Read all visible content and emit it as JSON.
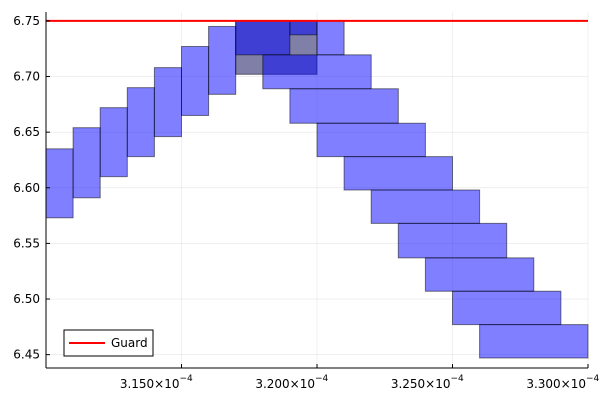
{
  "chart_data": {
    "type": "rectangles",
    "title": "",
    "xlabel": "",
    "ylabel": "",
    "xlim": [
      0.00031,
      0.00033
    ],
    "ylim": [
      6.438,
      6.758
    ],
    "grid": true,
    "legend_placement": "bottom-left",
    "x_ticks": [
      {
        "value": 0.000315,
        "mant": "3.150×10",
        "exp": "−4"
      },
      {
        "value": 0.00032,
        "mant": "3.200×10",
        "exp": "−4"
      },
      {
        "value": 0.000325,
        "mant": "3.250×10",
        "exp": "−4"
      },
      {
        "value": 0.00033,
        "mant": "3.300×10",
        "exp": "−4"
      }
    ],
    "y_ticks": [
      {
        "value": 6.45,
        "label": "6.45"
      },
      {
        "value": 6.5,
        "label": "6.50"
      },
      {
        "value": 6.55,
        "label": "6.55"
      },
      {
        "value": 6.6,
        "label": "6.60"
      },
      {
        "value": 6.65,
        "label": "6.65"
      },
      {
        "value": 6.7,
        "label": "6.70"
      },
      {
        "value": 6.75,
        "label": "6.75"
      }
    ],
    "guard": {
      "name": "Guard",
      "y": 6.75,
      "color": "#ff0000"
    },
    "box_color": "#0000ff",
    "overlap_color": "#000050",
    "boxes": [
      {
        "x0": 0.00031,
        "x1": 0.000311,
        "y0": 6.573,
        "y1": 6.635
      },
      {
        "x0": 0.000311,
        "x1": 0.000312,
        "y0": 6.591,
        "y1": 6.654
      },
      {
        "x0": 0.000312,
        "x1": 0.000313,
        "y0": 6.61,
        "y1": 6.672
      },
      {
        "x0": 0.000313,
        "x1": 0.000314,
        "y0": 6.628,
        "y1": 6.69
      },
      {
        "x0": 0.000314,
        "x1": 0.000315,
        "y0": 6.646,
        "y1": 6.708
      },
      {
        "x0": 0.000315,
        "x1": 0.000316,
        "y0": 6.665,
        "y1": 6.727
      },
      {
        "x0": 0.000316,
        "x1": 0.000317,
        "y0": 6.684,
        "y1": 6.745
      },
      {
        "x0": 0.000317,
        "x1": 0.00032,
        "y0": 6.702,
        "y1": 6.75,
        "overlap": true
      },
      {
        "x0": 0.000317,
        "x1": 0.000319,
        "y0": 6.7195,
        "y1": 6.75
      },
      {
        "x0": 0.000319,
        "x1": 0.00032,
        "y0": 6.7375,
        "y1": 6.75
      },
      {
        "x0": 0.00032,
        "x1": 0.000321,
        "y0": 6.7195,
        "y1": 6.75
      },
      {
        "x0": 0.000318,
        "x1": 0.000322,
        "y0": 6.689,
        "y1": 6.7195
      },
      {
        "x0": 0.000319,
        "x1": 0.000323,
        "y0": 6.658,
        "y1": 6.689
      },
      {
        "x0": 0.00032,
        "x1": 0.000324,
        "y0": 6.628,
        "y1": 6.658
      },
      {
        "x0": 0.000321,
        "x1": 0.000325,
        "y0": 6.598,
        "y1": 6.628
      },
      {
        "x0": 0.000322,
        "x1": 0.000326,
        "y0": 6.568,
        "y1": 6.598
      },
      {
        "x0": 0.000323,
        "x1": 0.000327,
        "y0": 6.537,
        "y1": 6.568
      },
      {
        "x0": 0.000324,
        "x1": 0.000328,
        "y0": 6.507,
        "y1": 6.537
      },
      {
        "x0": 0.000325,
        "x1": 0.000329,
        "y0": 6.477,
        "y1": 6.507
      },
      {
        "x0": 0.000326,
        "x1": 0.00033,
        "y0": 6.447,
        "y1": 6.477
      }
    ]
  }
}
